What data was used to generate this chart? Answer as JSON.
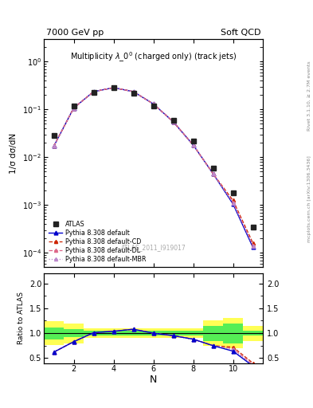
{
  "title_left": "7000 GeV pp",
  "title_right": "Soft QCD",
  "panel_title": "Multiplicity $\\lambda\\_0^0$ (charged only) (track jets)",
  "watermark": "ATLAS_2011_I919017",
  "right_label_top": "Rivet 3.1.10, ≥ 2.7M events",
  "right_label_bottom": "mcplots.cern.ch [arXiv:1306.3436]",
  "xlabel": "N",
  "ylabel_main": "1/σ dσ/dN",
  "ylabel_ratio": "Ratio to ATLAS",
  "atlas_x": [
    1,
    2,
    3,
    4,
    5,
    6,
    7,
    8,
    9,
    10,
    11
  ],
  "atlas_y": [
    0.028,
    0.12,
    0.23,
    0.28,
    0.22,
    0.12,
    0.058,
    0.022,
    0.006,
    0.0018,
    0.00035
  ],
  "pythia_default_x": [
    1,
    2,
    3,
    4,
    5,
    6,
    7,
    8,
    9,
    10,
    11
  ],
  "pythia_default_y": [
    0.017,
    0.107,
    0.235,
    0.285,
    0.235,
    0.13,
    0.055,
    0.018,
    0.0045,
    0.00105,
    0.00013
  ],
  "pythia_cd_x": [
    1,
    2,
    3,
    4,
    5,
    6,
    7,
    8,
    9,
    10,
    11
  ],
  "pythia_cd_y": [
    0.017,
    0.107,
    0.235,
    0.285,
    0.235,
    0.13,
    0.055,
    0.018,
    0.0045,
    0.00125,
    0.00016
  ],
  "pythia_dl_x": [
    1,
    2,
    3,
    4,
    5,
    6,
    7,
    8,
    9,
    10,
    11
  ],
  "pythia_dl_y": [
    0.017,
    0.107,
    0.235,
    0.285,
    0.235,
    0.13,
    0.055,
    0.018,
    0.0045,
    0.00115,
    0.000145
  ],
  "pythia_mbr_x": [
    1,
    2,
    3,
    4,
    5,
    6,
    7,
    8,
    9,
    10,
    11
  ],
  "pythia_mbr_y": [
    0.017,
    0.107,
    0.235,
    0.285,
    0.235,
    0.13,
    0.055,
    0.018,
    0.0045,
    0.0011,
    0.00014
  ],
  "ratio_default_y": [
    0.62,
    0.83,
    1.01,
    1.04,
    1.08,
    1.0,
    0.95,
    0.88,
    0.75,
    0.64,
    0.34
  ],
  "ratio_cd_y": [
    0.62,
    0.83,
    1.01,
    1.04,
    1.08,
    1.0,
    0.95,
    0.88,
    0.75,
    0.72,
    0.4
  ],
  "ratio_dl_y": [
    0.62,
    0.83,
    1.01,
    1.04,
    1.08,
    1.0,
    0.95,
    0.88,
    0.75,
    0.69,
    0.37
  ],
  "ratio_mbr_y": [
    0.62,
    0.83,
    1.01,
    1.04,
    1.08,
    1.0,
    0.95,
    0.88,
    0.75,
    0.67,
    0.36
  ],
  "green_band_edges": [
    0.5,
    1.5,
    2.5,
    3.5,
    4.5,
    5.5,
    6.5,
    7.5,
    8.5,
    9.5,
    10.5,
    11.5
  ],
  "green_band_lo": [
    0.88,
    0.92,
    0.95,
    0.95,
    0.95,
    0.95,
    0.95,
    0.95,
    0.85,
    0.8,
    0.95
  ],
  "green_band_hi": [
    1.12,
    1.08,
    1.05,
    1.05,
    1.05,
    1.05,
    1.05,
    1.05,
    1.15,
    1.2,
    1.05
  ],
  "yellow_band_lo": [
    0.76,
    0.8,
    0.9,
    0.9,
    0.9,
    0.9,
    0.9,
    0.9,
    0.75,
    0.7,
    0.85
  ],
  "yellow_band_hi": [
    1.24,
    1.2,
    1.1,
    1.1,
    1.1,
    1.1,
    1.1,
    1.1,
    1.25,
    1.3,
    1.15
  ],
  "color_atlas": "#222222",
  "color_default": "#0000cc",
  "color_cd": "#cc2200",
  "color_dl": "#dd6688",
  "color_mbr": "#bb88cc",
  "ylim_main": [
    5e-05,
    3.0
  ],
  "ylim_ratio": [
    0.4,
    2.2
  ],
  "xlim_main": [
    0.5,
    11.5
  ],
  "xlim_ratio": [
    0.5,
    11.5
  ],
  "xticks": [
    2,
    4,
    6,
    8,
    10
  ],
  "ratio_yticks": [
    0.5,
    1.0,
    1.5,
    2.0
  ]
}
